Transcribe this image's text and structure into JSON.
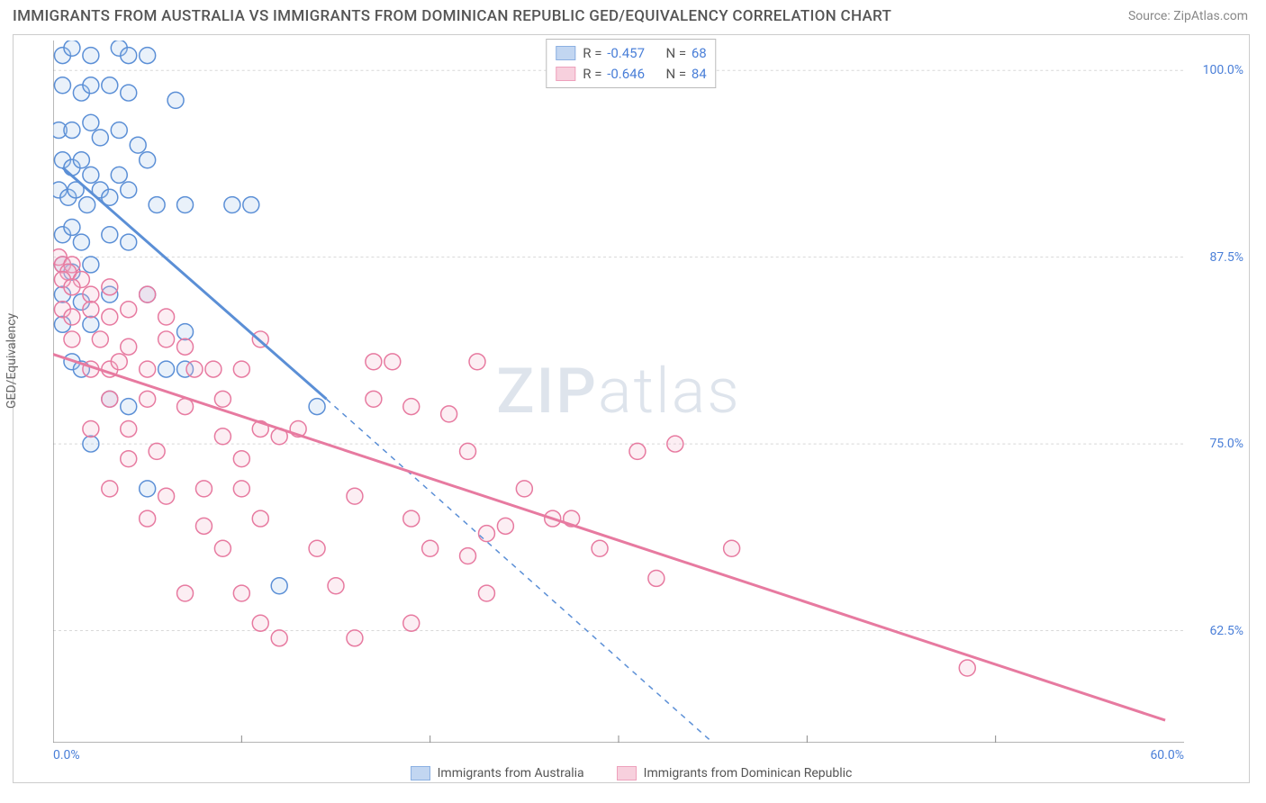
{
  "title": "IMMIGRANTS FROM AUSTRALIA VS IMMIGRANTS FROM DOMINICAN REPUBLIC GED/EQUIVALENCY CORRELATION CHART",
  "source": "Source: ZipAtlas.com",
  "y_axis_label": "GED/Equivalency",
  "watermark_bold": "ZIP",
  "watermark_light": "atlas",
  "chart": {
    "type": "scatter",
    "xlim": [
      0,
      60
    ],
    "ylim": [
      55,
      102
    ],
    "x_ticks": [
      0,
      10,
      20,
      30,
      40,
      50,
      60
    ],
    "x_tick_labels": [
      "0.0%",
      "",
      "",
      "",
      "",
      "",
      "60.0%"
    ],
    "y_ticks": [
      62.5,
      75.0,
      87.5,
      100.0
    ],
    "y_tick_labels": [
      "62.5%",
      "75.0%",
      "87.5%",
      "100.0%"
    ],
    "grid_color": "#d8d8d8",
    "axis_color": "#888888",
    "background_color": "#ffffff",
    "marker_radius": 9,
    "marker_stroke_width": 1.5,
    "marker_fill_opacity": 0.25,
    "series": [
      {
        "name": "Immigrants from Australia",
        "color_stroke": "#5b8fd6",
        "color_fill": "#a9c6ec",
        "R": "-0.457",
        "N": "68",
        "trend_solid": {
          "x1": 0.5,
          "y1": 93.5,
          "x2": 14.5,
          "y2": 78
        },
        "trend_dash": {
          "x1": 14.5,
          "y1": 78,
          "x2": 35,
          "y2": 55
        },
        "points": [
          [
            0.5,
            101
          ],
          [
            1,
            101.5
          ],
          [
            2,
            101
          ],
          [
            3.5,
            101.5
          ],
          [
            4,
            101
          ],
          [
            5,
            101
          ],
          [
            0.5,
            99
          ],
          [
            1.5,
            98.5
          ],
          [
            2,
            99
          ],
          [
            3,
            99
          ],
          [
            4,
            98.5
          ],
          [
            6.5,
            98
          ],
          [
            0.3,
            96
          ],
          [
            1,
            96
          ],
          [
            2,
            96.5
          ],
          [
            2.5,
            95.5
          ],
          [
            3.5,
            96
          ],
          [
            4.5,
            95
          ],
          [
            0.5,
            94
          ],
          [
            1,
            93.5
          ],
          [
            1.5,
            94
          ],
          [
            2,
            93
          ],
          [
            3.5,
            93
          ],
          [
            5,
            94
          ],
          [
            0.3,
            92
          ],
          [
            0.8,
            91.5
          ],
          [
            1.2,
            92
          ],
          [
            1.8,
            91
          ],
          [
            2.5,
            92
          ],
          [
            3,
            91.5
          ],
          [
            4,
            92
          ],
          [
            5.5,
            91
          ],
          [
            7,
            91
          ],
          [
            9.5,
            91
          ],
          [
            10.5,
            91
          ],
          [
            0.5,
            89
          ],
          [
            1,
            89.5
          ],
          [
            1.5,
            88.5
          ],
          [
            3,
            89
          ],
          [
            4,
            88.5
          ],
          [
            0.5,
            87
          ],
          [
            1,
            86.5
          ],
          [
            2,
            87
          ],
          [
            0.5,
            85
          ],
          [
            1.5,
            84.5
          ],
          [
            3,
            85
          ],
          [
            5,
            85
          ],
          [
            0.5,
            83
          ],
          [
            2,
            83
          ],
          [
            7,
            82.5
          ],
          [
            1,
            80.5
          ],
          [
            1.5,
            80
          ],
          [
            6,
            80
          ],
          [
            7,
            80
          ],
          [
            3,
            78
          ],
          [
            4,
            77.5
          ],
          [
            14,
            77.5
          ],
          [
            2,
            75
          ],
          [
            5,
            72
          ],
          [
            12,
            65.5
          ]
        ]
      },
      {
        "name": "Immigrants from Dominican Republic",
        "color_stroke": "#e77aa0",
        "color_fill": "#f5bdd0",
        "R": "-0.646",
        "N": "84",
        "trend_solid": {
          "x1": 0,
          "y1": 81,
          "x2": 59,
          "y2": 56.5
        },
        "trend_dash": null,
        "points": [
          [
            0.3,
            87.5
          ],
          [
            0.5,
            87
          ],
          [
            1,
            87
          ],
          [
            0.8,
            86.5
          ],
          [
            0.5,
            86
          ],
          [
            1.5,
            86
          ],
          [
            1,
            85.5
          ],
          [
            2,
            85
          ],
          [
            3,
            85.5
          ],
          [
            5,
            85
          ],
          [
            0.5,
            84
          ],
          [
            1,
            83.5
          ],
          [
            2,
            84
          ],
          [
            3,
            83.5
          ],
          [
            4,
            84
          ],
          [
            6,
            83.5
          ],
          [
            1,
            82
          ],
          [
            2.5,
            82
          ],
          [
            4,
            81.5
          ],
          [
            6,
            82
          ],
          [
            7,
            81.5
          ],
          [
            11,
            82
          ],
          [
            2,
            80
          ],
          [
            3,
            80
          ],
          [
            3.5,
            80.5
          ],
          [
            5,
            80
          ],
          [
            7.5,
            80
          ],
          [
            8.5,
            80
          ],
          [
            10,
            80
          ],
          [
            17,
            80.5
          ],
          [
            18,
            80.5
          ],
          [
            22.5,
            80.5
          ],
          [
            3,
            78
          ],
          [
            5,
            78
          ],
          [
            7,
            77.5
          ],
          [
            9,
            78
          ],
          [
            17,
            78
          ],
          [
            19,
            77.5
          ],
          [
            2,
            76
          ],
          [
            4,
            76
          ],
          [
            9,
            75.5
          ],
          [
            11,
            76
          ],
          [
            12,
            75.5
          ],
          [
            13,
            76
          ],
          [
            21,
            77
          ],
          [
            4,
            74
          ],
          [
            5.5,
            74.5
          ],
          [
            10,
            74
          ],
          [
            22,
            74.5
          ],
          [
            31,
            74.5
          ],
          [
            33,
            75
          ],
          [
            3,
            72
          ],
          [
            6,
            71.5
          ],
          [
            8,
            72
          ],
          [
            10,
            72
          ],
          [
            16,
            71.5
          ],
          [
            25,
            72
          ],
          [
            5,
            70
          ],
          [
            8,
            69.5
          ],
          [
            11,
            70
          ],
          [
            19,
            70
          ],
          [
            24,
            69.5
          ],
          [
            26.5,
            70
          ],
          [
            27.5,
            70
          ],
          [
            9,
            68
          ],
          [
            14,
            68
          ],
          [
            20,
            68
          ],
          [
            22,
            67.5
          ],
          [
            23,
            69
          ],
          [
            29,
            68
          ],
          [
            36,
            68
          ],
          [
            7,
            65
          ],
          [
            10,
            65
          ],
          [
            15,
            65.5
          ],
          [
            23,
            65
          ],
          [
            32,
            66
          ],
          [
            11,
            63
          ],
          [
            12,
            62
          ],
          [
            16,
            62
          ],
          [
            19,
            63
          ],
          [
            48.5,
            60
          ]
        ]
      }
    ]
  }
}
